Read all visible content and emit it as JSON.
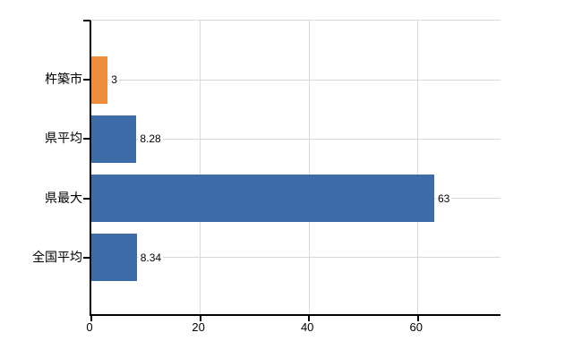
{
  "chart_data": {
    "type": "bar",
    "orientation": "horizontal",
    "title": "",
    "xlabel": "",
    "ylabel": "",
    "categories": [
      "杵築市",
      "県平均",
      "県最大",
      "全国平均"
    ],
    "values": [
      3,
      8.28,
      63,
      8.34
    ],
    "value_labels": [
      "3",
      "8.28",
      "63",
      "8.34"
    ],
    "bar_colors": [
      "#ED8C3B",
      "#3D6CA8",
      "#3D6CA8",
      "#3D6CA8"
    ],
    "x_ticks": [
      0,
      20,
      40,
      60
    ],
    "x_tick_labels": [
      "0",
      "20",
      "40",
      "60"
    ],
    "xlim": [
      0,
      75.5
    ],
    "grid": true,
    "legend": false
  },
  "colors": {
    "axis": "#000000",
    "gridline": "#d9d9d9",
    "background": "#ffffff",
    "text": "#000000"
  }
}
